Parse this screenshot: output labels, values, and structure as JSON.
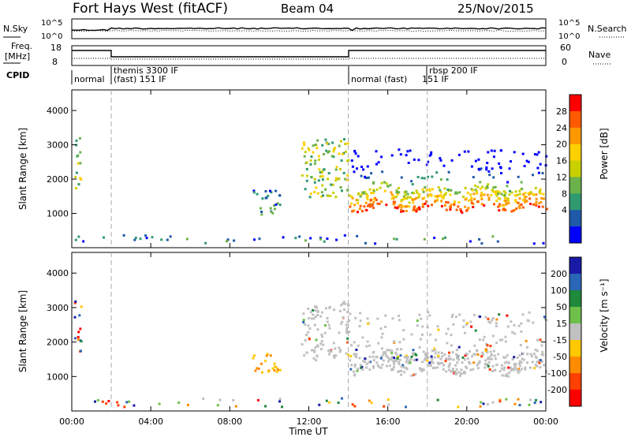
{
  "header": {
    "station": "Fort Hays West (fitACF)",
    "beam": "Beam 04",
    "date": "25/Nov/2015"
  },
  "status_panels": {
    "nsky_label": "N.Sky",
    "nsky_ticks": [
      "10^5",
      "10^0"
    ],
    "nsearch_label": "N.Search",
    "nsearch_ticks": [
      "10^5",
      "10^0"
    ],
    "freq_label": "Freq.",
    "freq_unit": "[MHz]",
    "freq_ticks": [
      "18",
      "8"
    ],
    "nave_label": "Nave",
    "nave_ticks": [
      "60",
      "0"
    ],
    "cpid_label": "CPID"
  },
  "cpid_segments": [
    {
      "line1": "normal",
      "line2": ""
    },
    {
      "line1": "themis 3300 IF",
      "line2": "(fast) 151 IF"
    },
    {
      "line1": "normal (fast)",
      "line2": "151 IF"
    },
    {
      "line1": "rbsp 200 IF",
      "line2": ""
    }
  ],
  "chart_data": [
    {
      "type": "heatmap",
      "panel": "power",
      "ylabel": "Slant Range [km]",
      "yticks": [
        "4000",
        "3000",
        "2000",
        "1000"
      ],
      "ylim": [
        0,
        4600
      ],
      "x_ticks": [
        "00:00",
        "04:00",
        "08:00",
        "12:00",
        "16:00",
        "20:00",
        "00:00"
      ],
      "colorbar": {
        "label": "Power [dB]",
        "ticks": [
          "28",
          "24",
          "20",
          "16",
          "12",
          "8",
          "4"
        ],
        "colors": [
          "#ff0000",
          "#ff5a00",
          "#ff9800",
          "#ffd000",
          "#c8d000",
          "#6bb24a",
          "#2f9a70",
          "#1e5aa8",
          "#0000ff"
        ]
      },
      "regions": [
        {
          "name": "early-echo",
          "t_start": 0.1,
          "t_end": 0.45,
          "r_low": 1700,
          "r_high": 3300,
          "level": "medium"
        },
        {
          "name": "mid-patch",
          "t_start": 9.1,
          "t_end": 10.5,
          "r_low": 1000,
          "r_high": 1700,
          "level": "low"
        },
        {
          "name": "streak",
          "t_start": 11.6,
          "t_end": 14.0,
          "r_low": 1500,
          "r_high": 3200,
          "level": "medium"
        },
        {
          "name": "main-band",
          "t_start": 14.0,
          "t_end": 24.0,
          "r_low": 1050,
          "r_high": 2900,
          "level": "high"
        },
        {
          "name": "ground-scatter",
          "t_start": 0.0,
          "t_end": 24.0,
          "r_low": 150,
          "r_high": 400,
          "level": "low"
        }
      ]
    },
    {
      "type": "heatmap",
      "panel": "velocity",
      "ylabel": "Slant Range [km]",
      "yticks": [
        "4000",
        "3000",
        "2000",
        "1000"
      ],
      "ylim": [
        0,
        4600
      ],
      "xlabel": "Time UT",
      "x_ticks": [
        "00:00",
        "04:00",
        "08:00",
        "12:00",
        "16:00",
        "20:00",
        "00:00"
      ],
      "colorbar": {
        "label": "Velocity [m s⁻¹]",
        "ticks": [
          "200",
          "100",
          "50",
          "15",
          "-15",
          "-50",
          "-100",
          "-200"
        ],
        "colors": [
          "#1a1aa8",
          "#2a66b8",
          "#1e8a3a",
          "#6dc04a",
          "#c0c0c0",
          "#ffc800",
          "#ff8c00",
          "#ff4000",
          "#ff0000"
        ]
      },
      "regions": [
        {
          "name": "early-echo",
          "t_start": 0.1,
          "t_end": 0.45,
          "r_low": 1700,
          "r_high": 3300,
          "level": "mixed"
        },
        {
          "name": "mid-patch",
          "t_start": 9.1,
          "t_end": 10.5,
          "r_low": 1100,
          "r_high": 1700,
          "level": "negative"
        },
        {
          "name": "streak",
          "t_start": 11.6,
          "t_end": 14.0,
          "r_low": 1500,
          "r_high": 3200,
          "level": "near-zero"
        },
        {
          "name": "main-band",
          "t_start": 14.0,
          "t_end": 24.0,
          "r_low": 1050,
          "r_high": 2900,
          "level": "near-zero"
        },
        {
          "name": "ground-scatter",
          "t_start": 0.0,
          "t_end": 24.0,
          "r_low": 150,
          "r_high": 400,
          "level": "mixed"
        }
      ]
    }
  ]
}
